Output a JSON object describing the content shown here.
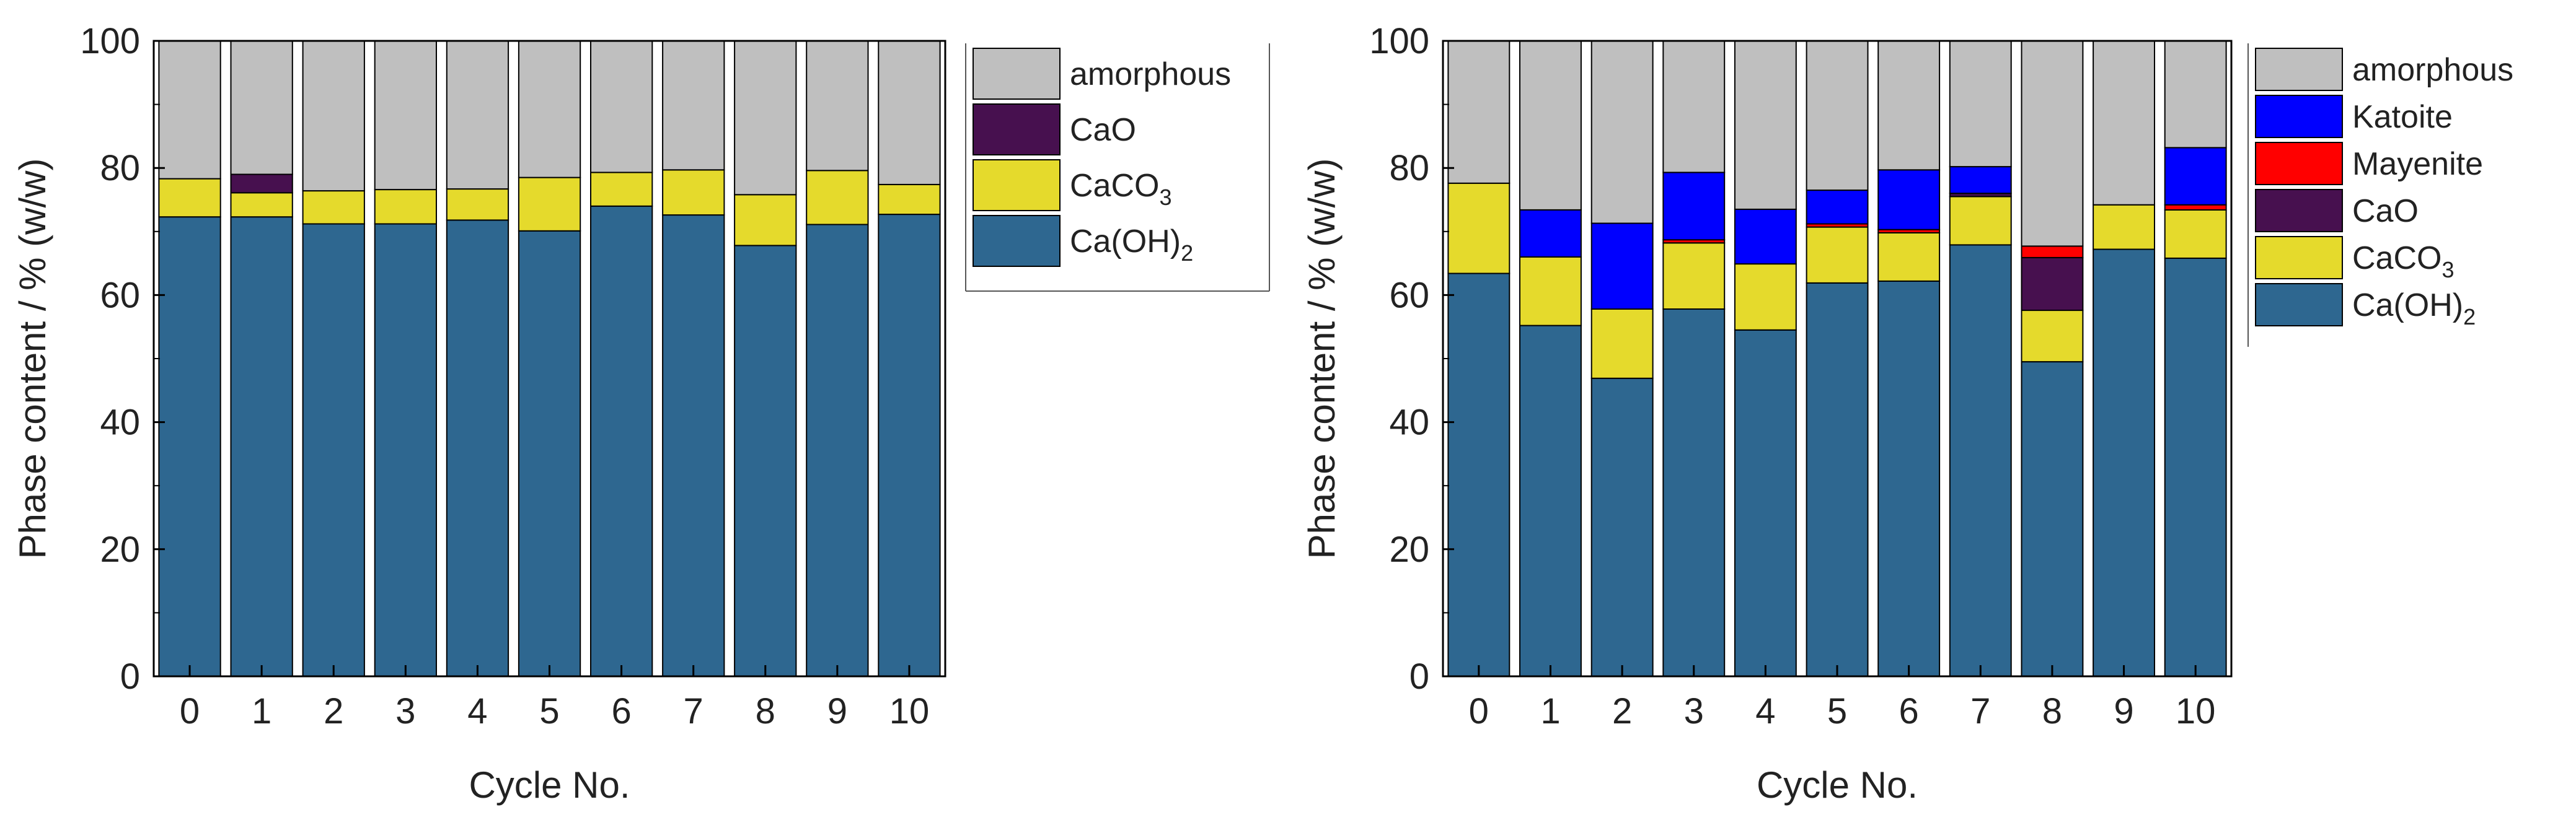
{
  "chart_data": [
    {
      "type": "bar",
      "stacked": true,
      "xlabel": "Cycle No.",
      "ylabel": "Phase content / % (w/w)",
      "ylim": [
        0,
        100
      ],
      "yticks": [
        "0",
        "20",
        "40",
        "60",
        "80",
        "100"
      ],
      "categories": [
        "0",
        "1",
        "2",
        "3",
        "4",
        "5",
        "6",
        "7",
        "8",
        "9",
        "10"
      ],
      "legend_position": "outside-right-top",
      "legend": [
        {
          "name": "amorphous",
          "sub": "",
          "tail": ""
        },
        {
          "name": "CaO",
          "sub": "",
          "tail": ""
        },
        {
          "name": "CaCO",
          "sub": "3",
          "tail": ""
        },
        {
          "name": "Ca(OH)",
          "sub": "2",
          "tail": ""
        }
      ],
      "series": [
        {
          "name": "Ca(OH)2",
          "color": "#2e6790",
          "values": [
            72.3,
            72.3,
            71.2,
            71.2,
            71.8,
            70.1,
            74.0,
            72.6,
            67.8,
            71.1,
            72.7
          ]
        },
        {
          "name": "CaCO3",
          "color": "#e5da2c",
          "values": [
            6.0,
            3.8,
            5.2,
            5.4,
            4.9,
            8.4,
            5.3,
            7.1,
            8.0,
            8.5,
            4.7
          ]
        },
        {
          "name": "CaO",
          "color": "#47104f",
          "values": [
            0.0,
            2.9,
            0.0,
            0.0,
            0.0,
            0.0,
            0.0,
            0.0,
            0.0,
            0.0,
            0.0
          ]
        },
        {
          "name": "amorphous",
          "color": "#bfbfbf",
          "values": [
            21.7,
            21.0,
            23.6,
            23.4,
            23.3,
            21.5,
            20.7,
            20.3,
            24.2,
            20.4,
            22.6
          ]
        }
      ]
    },
    {
      "type": "bar",
      "stacked": true,
      "xlabel": "Cycle No.",
      "ylabel": "Phase content / % (w/w)",
      "ylim": [
        0,
        100
      ],
      "yticks": [
        "0",
        "20",
        "40",
        "60",
        "80",
        "100"
      ],
      "categories": [
        "0",
        "1",
        "2",
        "3",
        "4",
        "5",
        "6",
        "7",
        "8",
        "9",
        "10"
      ],
      "legend_position": "outside-right-top",
      "legend": [
        {
          "name": "amorphous",
          "sub": "",
          "tail": ""
        },
        {
          "name": "Katoite",
          "sub": "",
          "tail": ""
        },
        {
          "name": "Mayenite",
          "sub": "",
          "tail": ""
        },
        {
          "name": "CaO",
          "sub": "",
          "tail": ""
        },
        {
          "name": "CaCO",
          "sub": "3",
          "tail": ""
        },
        {
          "name": "Ca(OH)",
          "sub": "2",
          "tail": ""
        }
      ],
      "series": [
        {
          "name": "Ca(OH)2",
          "color": "#2e6790",
          "values": [
            63.4,
            55.2,
            46.9,
            57.8,
            54.5,
            61.9,
            62.2,
            67.9,
            49.5,
            67.2,
            65.8
          ]
        },
        {
          "name": "CaCO3",
          "color": "#e5da2c",
          "values": [
            14.2,
            10.8,
            10.9,
            10.4,
            10.4,
            8.8,
            7.6,
            7.6,
            8.1,
            7.0,
            7.6
          ]
        },
        {
          "name": "CaO",
          "color": "#47104f",
          "values": [
            0.0,
            0.0,
            0.0,
            0.0,
            0.0,
            0.0,
            0.0,
            0.5,
            8.3,
            0.0,
            0.0
          ]
        },
        {
          "name": "Mayenite",
          "color": "#ff0000",
          "values": [
            0.0,
            0.0,
            0.0,
            0.5,
            0.0,
            0.5,
            0.5,
            0.0,
            1.8,
            0.0,
            0.8
          ]
        },
        {
          "name": "Katoite",
          "color": "#0000ff",
          "values": [
            0.0,
            7.4,
            13.5,
            10.6,
            8.6,
            5.3,
            9.4,
            4.2,
            0.0,
            0.0,
            9.0
          ]
        },
        {
          "name": "amorphous",
          "color": "#bfbfbf",
          "values": [
            22.4,
            26.6,
            28.7,
            20.7,
            26.5,
            23.5,
            20.3,
            19.8,
            32.3,
            25.8,
            16.8
          ]
        }
      ]
    }
  ]
}
